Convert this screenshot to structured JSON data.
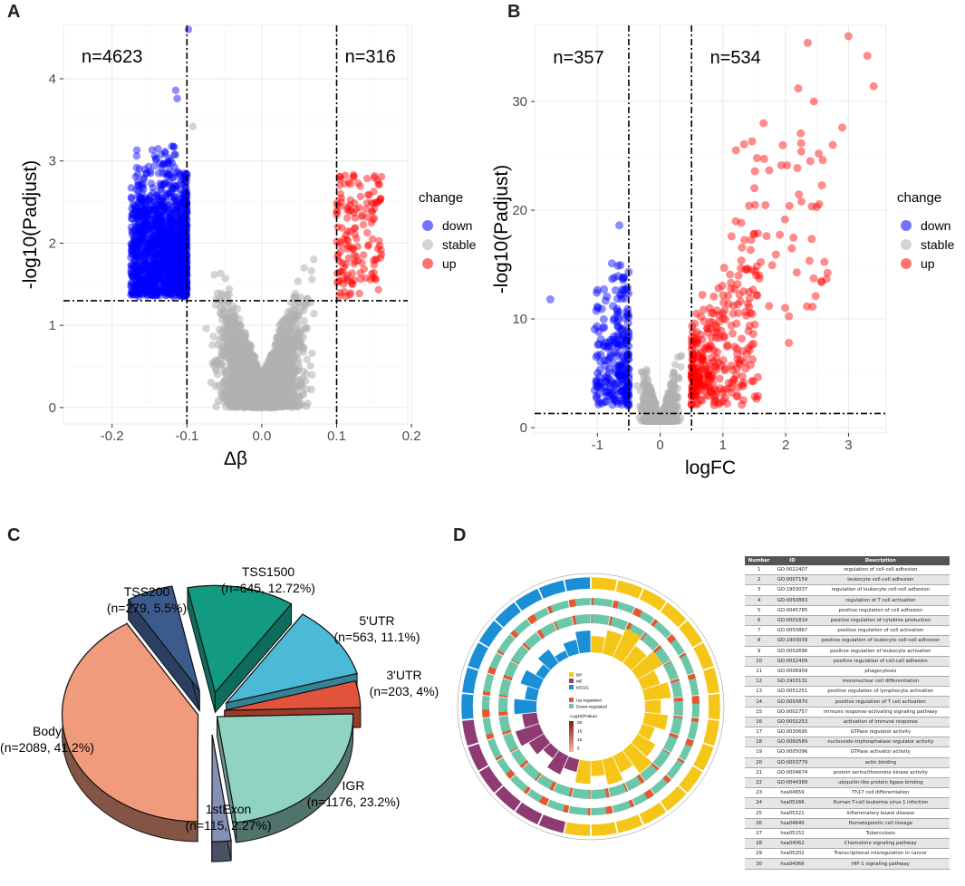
{
  "panels": {
    "a": "A",
    "b": "B",
    "c": "C",
    "d": "D"
  },
  "chart_data": [
    {
      "type": "scatter",
      "id": "A",
      "xlabel": "Δβ",
      "ylabel": "-log10(Padjust)",
      "xlim": [
        -0.265,
        0.195
      ],
      "ylim": [
        -0.2,
        4.65
      ],
      "xticks": [
        "-0.2",
        "-0.1",
        "0.0",
        "0.1",
        "0.2"
      ],
      "xtick_values": [
        -0.2,
        -0.1,
        0.0,
        0.1,
        0.2
      ],
      "yticks": [
        "0",
        "1",
        "2",
        "3",
        "4"
      ],
      "ytick_values": [
        0,
        1,
        2,
        3,
        4
      ],
      "vlines": [
        -0.1,
        0.1
      ],
      "hline": 1.3,
      "annotations": [
        {
          "text": "n=4623",
          "x": -0.2,
          "y": 4.2
        },
        {
          "text": "n=316",
          "x": 0.145,
          "y": 4.2
        }
      ],
      "legend": {
        "title": "change",
        "entries": [
          "down",
          "stable",
          "up"
        ]
      },
      "colors": {
        "down": "#0000ff",
        "stable": "#b0b0b0",
        "up": "#ff0000"
      },
      "highlight_points": [
        {
          "group": "down",
          "x": -0.098,
          "y": 4.6
        },
        {
          "group": "down",
          "x": -0.115,
          "y": 3.86
        },
        {
          "group": "down",
          "x": -0.113,
          "y": 3.76
        },
        {
          "group": "stable",
          "x": -0.092,
          "y": 3.42
        }
      ]
    },
    {
      "type": "scatter",
      "id": "B",
      "xlabel": "logFC",
      "ylabel": "-log10(Padjust)",
      "xlim": [
        -2.0,
        3.6
      ],
      "ylim": [
        -0.5,
        37
      ],
      "xticks": [
        "-1",
        "0",
        "1",
        "2",
        "3"
      ],
      "xtick_values": [
        -1,
        0,
        1,
        2,
        3
      ],
      "yticks": [
        "0",
        "10",
        "20",
        "30"
      ],
      "ytick_values": [
        0,
        10,
        20,
        30
      ],
      "vlines": [
        -0.5,
        0.5
      ],
      "hline": 1.3,
      "annotations": [
        {
          "text": "n=357",
          "x": -1.3,
          "y": 33.5
        },
        {
          "text": "n=534",
          "x": 1.2,
          "y": 33.5
        }
      ],
      "legend": {
        "title": "change",
        "entries": [
          "down",
          "stable",
          "up"
        ]
      },
      "colors": {
        "down": "#0000ff",
        "stable": "#b0b0b0",
        "up": "#ff0000"
      },
      "highlight_points": [
        {
          "group": "up",
          "x": 3.0,
          "y": 36.0
        },
        {
          "group": "up",
          "x": 2.35,
          "y": 35.4
        },
        {
          "group": "up",
          "x": 3.3,
          "y": 34.2
        },
        {
          "group": "up",
          "x": 3.4,
          "y": 31.4
        },
        {
          "group": "up",
          "x": 2.45,
          "y": 30.0
        },
        {
          "group": "up",
          "x": 2.2,
          "y": 31.2
        },
        {
          "group": "up",
          "x": 2.9,
          "y": 27.6
        },
        {
          "group": "up",
          "x": 2.75,
          "y": 26.0
        },
        {
          "group": "up",
          "x": 2.05,
          "y": 7.8
        },
        {
          "group": "down",
          "x": -1.75,
          "y": 11.8
        },
        {
          "group": "down",
          "x": -0.65,
          "y": 18.6
        }
      ]
    },
    {
      "type": "pie",
      "id": "C",
      "labels": [
        "TSS200",
        "TSS1500",
        "5'UTR",
        "3'UTR",
        "IGR",
        "1stExon",
        "Body"
      ],
      "values": [
        279,
        645,
        563,
        203,
        1176,
        115,
        2089
      ],
      "percents": [
        "5.5%",
        "12.72%",
        "11.1%",
        "4%",
        "23.2%",
        "2.27%",
        "41.2%"
      ],
      "colors": [
        "#3c5a8c",
        "#129a82",
        "#4cb9d6",
        "#e2533b",
        "#91d3c2",
        "#8491b4",
        "#f09b7c"
      ]
    },
    {
      "type": "table",
      "id": "D",
      "circos": {
        "legend_categories": [
          "BP",
          "MF",
          "KEGG"
        ],
        "legend_colors": [
          "#f5c518",
          "#8e3b73",
          "#1a8fd6"
        ],
        "legend_reg": [
          "Up-regulated",
          "Down-regulated"
        ],
        "legend_reg_colors": [
          "#e8562f",
          "#6cc7a8"
        ],
        "scale_title": "-Log10(Pvalue)",
        "scale_ticks": [
          "20",
          "15",
          "10",
          "5"
        ]
      },
      "columns": [
        "Number",
        "ID",
        "Description"
      ],
      "rows": [
        [
          "1",
          "GO:0022407",
          "regulation of cell-cell adhesion"
        ],
        [
          "2",
          "GO:0007159",
          "leukocyte cell-cell adhesion"
        ],
        [
          "3",
          "GO:1903037",
          "regulation of leukocyte cell-cell adhesion"
        ],
        [
          "4",
          "GO:0050863",
          "regulation of T cell activation"
        ],
        [
          "5",
          "GO:0045785",
          "positive regulation of cell adhesion"
        ],
        [
          "6",
          "GO:0001819",
          "positive regulation of cytokine production"
        ],
        [
          "7",
          "GO:0050867",
          "positive regulation of cell activation"
        ],
        [
          "8",
          "GO:1903039",
          "positive regulation of leukocyte cell-cell adhesion"
        ],
        [
          "9",
          "GO:0002696",
          "positive regulation of leukocyte activation"
        ],
        [
          "10",
          "GO:0022409",
          "positive regulation of cell-cell adhesion"
        ],
        [
          "11",
          "GO:0006909",
          "phagocytosis"
        ],
        [
          "12",
          "GO:1903131",
          "mononuclear cell differentiation"
        ],
        [
          "13",
          "GO:0051251",
          "positive regulation of lymphocyte activation"
        ],
        [
          "14",
          "GO:0050870",
          "positive regulation of T cell activation"
        ],
        [
          "15",
          "GO:0002757",
          "immune response-activating signaling pathway"
        ],
        [
          "16",
          "GO:0002253",
          "activation of immune response"
        ],
        [
          "17",
          "GO:0030695",
          "GTPase regulator activity"
        ],
        [
          "18",
          "GO:0060589",
          "nucleoside-triphosphatase regulator activity"
        ],
        [
          "19",
          "GO:0005096",
          "GTPase activator activity"
        ],
        [
          "20",
          "GO:0003779",
          "actin binding"
        ],
        [
          "21",
          "GO:0004674",
          "protein serine/threonine kinase activity"
        ],
        [
          "22",
          "GO:0044389",
          "ubiquitin-like protein ligase binding"
        ],
        [
          "23",
          "hsa04659",
          "Th17 cell differentiation"
        ],
        [
          "24",
          "hsa05166",
          "Human T-cell leukemia virus 1 infection"
        ],
        [
          "25",
          "hsa05321",
          "Inflammatory bowel disease"
        ],
        [
          "26",
          "hsa04640",
          "Hematopoietic cell lineage"
        ],
        [
          "27",
          "hsa05152",
          "Tuberculosis"
        ],
        [
          "28",
          "hsa04062",
          "Chemokine signaling pathway"
        ],
        [
          "29",
          "hsa05202",
          "Transcriptional misregulation in cancer"
        ],
        [
          "30",
          "hsa04066",
          "HIF-1 signaling pathway"
        ]
      ]
    }
  ]
}
